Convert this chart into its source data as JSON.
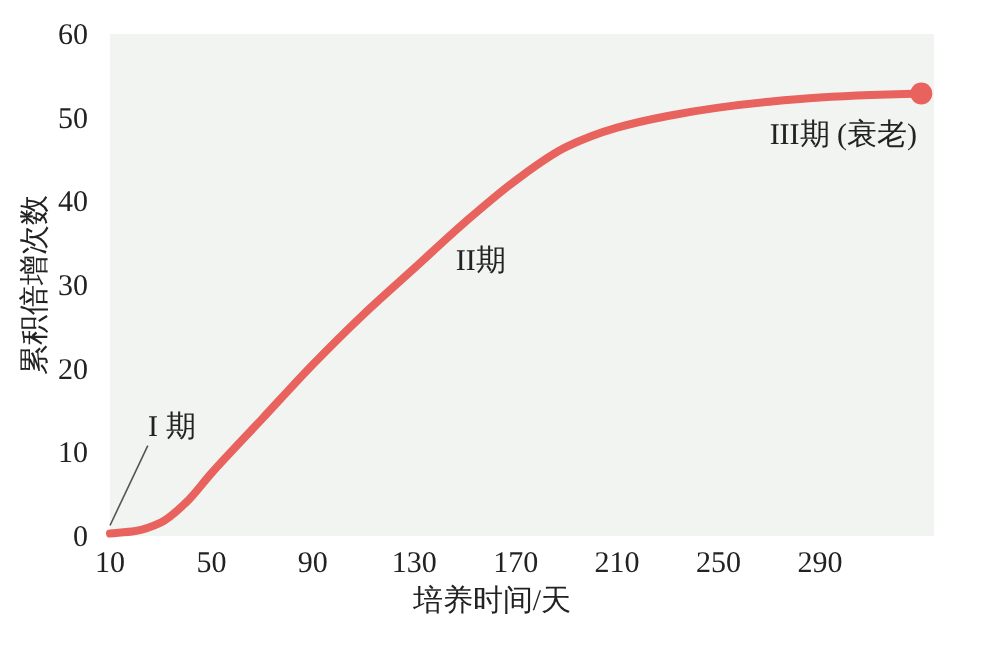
{
  "chart_data": {
    "type": "line",
    "xlabel": "培养时间/天",
    "ylabel": "累积倍增次数",
    "x": [
      10,
      20,
      30,
      40,
      50,
      70,
      90,
      110,
      130,
      150,
      170,
      190,
      210,
      230,
      250,
      270,
      290,
      310,
      330
    ],
    "series": [
      {
        "color": "#e8625e",
        "values": [
          0.3,
          0.6,
          1.6,
          4,
          7.5,
          14,
          20.5,
          26.5,
          32,
          37.5,
          42.5,
          46.5,
          48.8,
          50.2,
          51.2,
          51.9,
          52.4,
          52.7,
          52.9
        ]
      }
    ],
    "xlim": [
      10,
      335
    ],
    "ylim": [
      0,
      60
    ],
    "xticks": [
      10,
      50,
      90,
      130,
      170,
      210,
      250,
      290
    ],
    "yticks": [
      0,
      10,
      20,
      30,
      40,
      50,
      60
    ],
    "marker": "none",
    "grid": false,
    "annotations": [
      {
        "text": "I 期",
        "x": 10,
        "y": 0.3
      },
      "II期",
      "III期 (衰老)"
    ]
  }
}
